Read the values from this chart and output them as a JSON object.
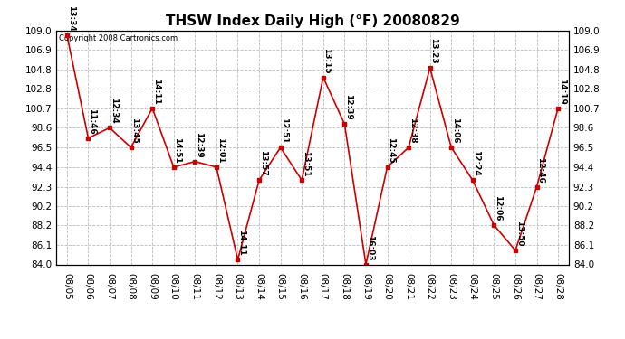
{
  "title": "THSW Index Daily High (°F) 20080829",
  "copyright": "Copyright 2008 Cartronics.com",
  "dates": [
    "08/05",
    "08/06",
    "08/07",
    "08/08",
    "08/09",
    "08/10",
    "08/11",
    "08/12",
    "08/13",
    "08/14",
    "08/15",
    "08/16",
    "08/17",
    "08/18",
    "08/19",
    "08/20",
    "08/21",
    "08/22",
    "08/23",
    "08/24",
    "08/25",
    "08/26",
    "08/27",
    "08/28"
  ],
  "values": [
    108.5,
    97.5,
    98.6,
    96.5,
    100.7,
    94.4,
    95.0,
    94.4,
    84.5,
    93.0,
    96.5,
    93.0,
    104.0,
    99.0,
    84.0,
    94.4,
    96.5,
    105.0,
    96.5,
    93.0,
    88.2,
    85.5,
    92.3,
    100.7
  ],
  "labels": [
    "13:34",
    "11:46",
    "12:34",
    "13:45",
    "14:11",
    "14:51",
    "12:39",
    "12:01",
    "14:11",
    "13:57",
    "12:51",
    "13:51",
    "13:15",
    "12:39",
    "16:03",
    "12:45",
    "12:38",
    "13:23",
    "14:06",
    "12:24",
    "12:06",
    "13:50",
    "12:46",
    "14:19"
  ],
  "ylim": [
    84.0,
    109.0
  ],
  "yticks": [
    84.0,
    86.1,
    88.2,
    90.2,
    92.3,
    94.4,
    96.5,
    98.6,
    100.7,
    102.8,
    104.8,
    106.9,
    109.0
  ],
  "line_color": "#cc0000",
  "marker_color": "#cc0000",
  "bg_color": "#ffffff",
  "grid_color": "#bbbbbb",
  "label_color": "#000000",
  "title_fontsize": 11,
  "tick_fontsize": 7.5,
  "annotation_fontsize": 6.5
}
